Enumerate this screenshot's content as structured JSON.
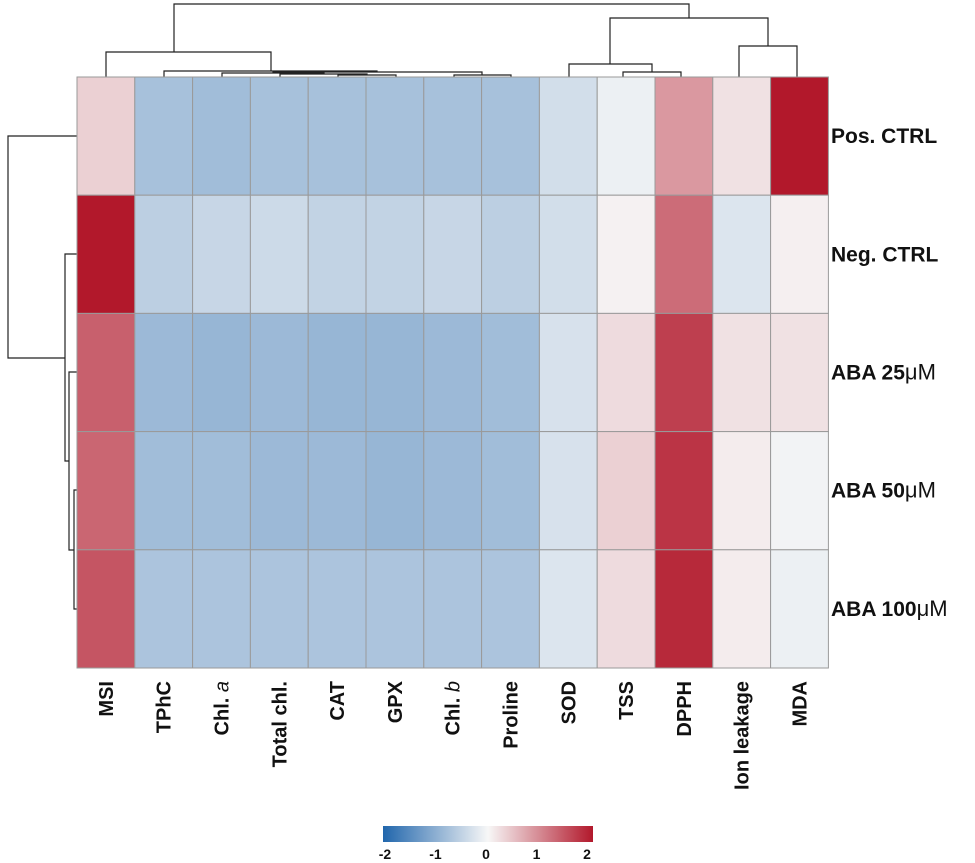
{
  "chart_data": {
    "type": "heatmap",
    "rows": [
      {
        "label": "Pos. CTRL",
        "unit": ""
      },
      {
        "label": "Neg. CTRL",
        "unit": ""
      },
      {
        "label": "ABA 25",
        "unit": "μM"
      },
      {
        "label": "ABA 50",
        "unit": "μM"
      },
      {
        "label": "ABA 100",
        "unit": "μM"
      }
    ],
    "columns": [
      {
        "label": "MSI",
        "italic": ""
      },
      {
        "label": "TPhC",
        "italic": ""
      },
      {
        "label": "Chl. ",
        "italic": "a"
      },
      {
        "label": "Total chl.",
        "italic": ""
      },
      {
        "label": "CAT",
        "italic": ""
      },
      {
        "label": "GPX",
        "italic": ""
      },
      {
        "label": "Chl. ",
        "italic": "b"
      },
      {
        "label": "Proline",
        "italic": ""
      },
      {
        "label": "SOD",
        "italic": ""
      },
      {
        "label": "TSS",
        "italic": ""
      },
      {
        "label": "DPPH",
        "italic": ""
      },
      {
        "label": "Ion leakage",
        "italic": ""
      },
      {
        "label": "MDA",
        "italic": ""
      }
    ],
    "values": [
      [
        0.35,
        -0.75,
        -0.8,
        -0.75,
        -0.75,
        -0.75,
        -0.75,
        -0.75,
        -0.35,
        -0.1,
        0.85,
        0.2,
        2.0
      ],
      [
        2.0,
        -0.55,
        -0.45,
        -0.4,
        -0.5,
        -0.5,
        -0.45,
        -0.55,
        -0.35,
        0.05,
        1.25,
        -0.25,
        0.07
      ],
      [
        1.35,
        -0.85,
        -0.9,
        -0.85,
        -0.9,
        -0.9,
        -0.85,
        -0.8,
        -0.3,
        0.25,
        1.65,
        0.2,
        0.2
      ],
      [
        1.3,
        -0.8,
        -0.8,
        -0.85,
        -0.85,
        -0.9,
        -0.85,
        -0.8,
        -0.3,
        0.35,
        1.75,
        0.1,
        -0.05
      ],
      [
        1.45,
        -0.7,
        -0.7,
        -0.7,
        -0.7,
        -0.7,
        -0.7,
        -0.7,
        -0.25,
        0.25,
        1.85,
        0.1,
        -0.1
      ]
    ],
    "colorbar": {
      "range": [
        -2,
        2
      ],
      "ticks": [
        "-2",
        "-1",
        "0",
        "1",
        "2"
      ],
      "colors": [
        "#2166ac",
        "#f7f7f7",
        "#b2182b"
      ]
    },
    "row_dendrogram": true,
    "column_dendrogram": true
  }
}
